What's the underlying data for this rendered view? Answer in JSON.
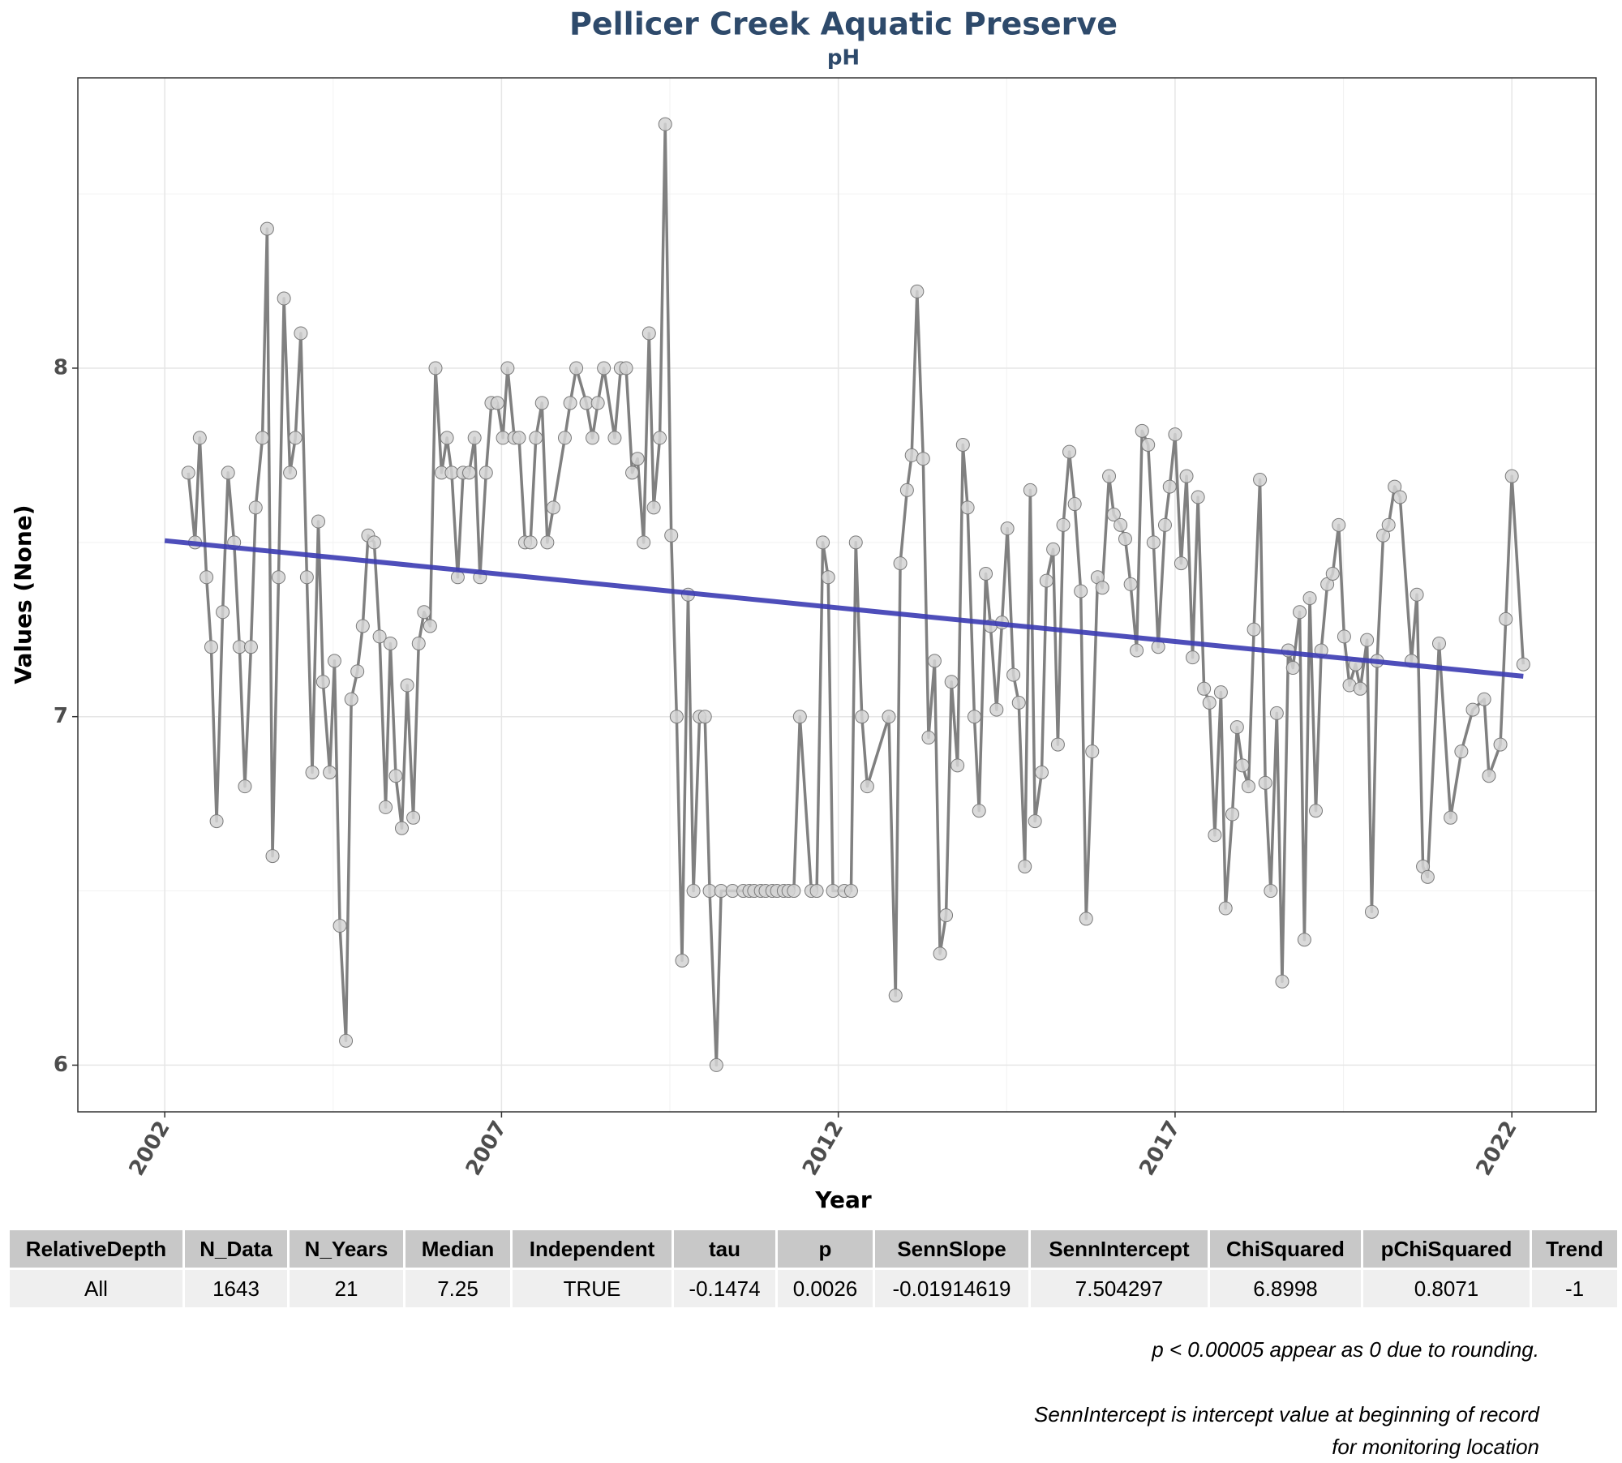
{
  "chart_data": {
    "type": "line",
    "title": "Pellicer Creek Aquatic Preserve",
    "subtitle": "pH",
    "x_label": "Year",
    "y_label": "Values (None)",
    "xlim": [
      2000.71,
      2023.25
    ],
    "ylim": [
      5.866,
      8.833
    ],
    "xticks": [
      2002,
      2007,
      2012,
      2017,
      2022
    ],
    "yticks": [
      6,
      7,
      8
    ],
    "minor_grid_x": [
      2004.5,
      2009.5,
      2014.5,
      2019.5
    ],
    "minor_grid_y": [
      6.5,
      7.5,
      8.5
    ],
    "grid": true,
    "color": "#808080",
    "marker_color": "#d3d3d3",
    "x": [
      2002.35,
      2002.45,
      2002.52,
      2002.62,
      2002.69,
      2002.77,
      2002.86,
      2002.94,
      2003.03,
      2003.11,
      2003.19,
      2003.28,
      2003.35,
      2003.45,
      2003.52,
      2003.6,
      2003.69,
      2003.77,
      2003.86,
      2003.94,
      2004.02,
      2004.11,
      2004.19,
      2004.28,
      2004.35,
      2004.45,
      2004.52,
      2004.6,
      2004.69,
      2004.77,
      2004.86,
      2004.94,
      2005.02,
      2005.11,
      2005.19,
      2005.28,
      2005.35,
      2005.43,
      2005.52,
      2005.6,
      2005.69,
      2005.77,
      2005.85,
      2005.94,
      2006.02,
      2006.11,
      2006.19,
      2006.26,
      2006.35,
      2006.43,
      2006.52,
      2006.6,
      2006.68,
      2006.77,
      2006.85,
      2006.94,
      2007.02,
      2007.09,
      2007.19,
      2007.26,
      2007.35,
      2007.43,
      2007.51,
      2007.6,
      2007.68,
      2007.77,
      2007.94,
      2008.02,
      2008.11,
      2008.26,
      2008.35,
      2008.43,
      2008.52,
      2008.68,
      2008.77,
      2008.85,
      2008.94,
      2009.02,
      2009.11,
      2009.19,
      2009.26,
      2009.35,
      2009.43,
      2009.52,
      2009.6,
      2009.68,
      2009.77,
      2009.85,
      2009.94,
      2010.02,
      2010.09,
      2010.19,
      2010.26,
      2010.43,
      2010.59,
      2010.68,
      2010.75,
      2010.85,
      2010.92,
      2011.02,
      2011.09,
      2011.19,
      2011.26,
      2011.34,
      2011.43,
      2011.6,
      2011.68,
      2011.77,
      2011.85,
      2011.92,
      2012.09,
      2012.19,
      2012.26,
      2012.35,
      2012.43,
      2012.75,
      2012.85,
      2012.92,
      2013.02,
      2013.09,
      2013.17,
      2013.26,
      2013.34,
      2013.43,
      2013.51,
      2013.6,
      2013.68,
      2013.77,
      2013.85,
      2013.92,
      2014.02,
      2014.09,
      2014.19,
      2014.26,
      2014.35,
      2014.43,
      2014.51,
      2014.6,
      2014.68,
      2014.77,
      2014.85,
      2014.92,
      2015.02,
      2015.09,
      2015.19,
      2015.26,
      2015.34,
      2015.43,
      2015.51,
      2015.6,
      2015.68,
      2015.77,
      2015.85,
      2015.92,
      2016.02,
      2016.09,
      2016.19,
      2016.26,
      2016.34,
      2016.43,
      2016.51,
      2016.6,
      2016.68,
      2016.75,
      2016.85,
      2016.92,
      2017.0,
      2017.09,
      2017.17,
      2017.26,
      2017.34,
      2017.43,
      2017.51,
      2017.59,
      2017.68,
      2017.75,
      2017.85,
      2017.92,
      2018.0,
      2018.09,
      2018.17,
      2018.26,
      2018.34,
      2018.42,
      2018.51,
      2018.59,
      2018.68,
      2018.75,
      2018.85,
      2018.92,
      2019.0,
      2019.09,
      2019.17,
      2019.26,
      2019.34,
      2019.43,
      2019.51,
      2019.59,
      2019.68,
      2019.75,
      2019.85,
      2019.92,
      2020.0,
      2020.09,
      2020.17,
      2020.26,
      2020.34,
      2020.51,
      2020.59,
      2020.68,
      2020.75,
      2020.92,
      2021.09,
      2021.25,
      2021.42,
      2021.59,
      2021.66,
      2021.83,
      2021.91,
      2022.0,
      2022.17
    ],
    "values": [
      7.7,
      7.5,
      7.8,
      7.4,
      7.2,
      6.7,
      7.3,
      7.7,
      7.5,
      7.2,
      6.8,
      7.2,
      7.6,
      7.8,
      8.4,
      6.6,
      7.4,
      8.2,
      7.7,
      7.8,
      8.1,
      7.4,
      6.84,
      7.56,
      7.1,
      6.84,
      7.16,
      6.4,
      6.07,
      7.05,
      7.13,
      7.26,
      7.52,
      7.5,
      7.23,
      6.74,
      7.21,
      6.83,
      6.68,
      7.09,
      6.71,
      7.21,
      7.3,
      7.26,
      8.0,
      7.7,
      7.8,
      7.7,
      7.4,
      7.7,
      7.7,
      7.8,
      7.4,
      7.7,
      7.9,
      7.9,
      7.8,
      8.0,
      7.8,
      7.8,
      7.5,
      7.5,
      7.8,
      7.9,
      7.5,
      7.6,
      7.8,
      7.9,
      8.0,
      7.9,
      7.8,
      7.9,
      8.0,
      7.8,
      8.0,
      8.0,
      7.7,
      7.74,
      7.5,
      8.1,
      7.6,
      7.8,
      8.7,
      7.52,
      7.0,
      6.3,
      7.35,
      6.5,
      7.0,
      7.0,
      6.5,
      6.0,
      6.5,
      6.5,
      6.5,
      6.5,
      6.5,
      6.5,
      6.5,
      6.5,
      6.5,
      6.5,
      6.5,
      6.5,
      7.0,
      6.5,
      6.5,
      7.5,
      7.4,
      6.5,
      6.5,
      6.5,
      7.5,
      7.0,
      6.8,
      7.0,
      6.2,
      7.44,
      7.65,
      7.75,
      8.22,
      7.74,
      6.94,
      7.16,
      6.32,
      6.43,
      7.1,
      6.86,
      7.78,
      7.6,
      7.0,
      6.73,
      7.41,
      7.26,
      7.02,
      7.27,
      7.54,
      7.12,
      7.04,
      6.57,
      7.65,
      6.7,
      6.84,
      7.39,
      7.48,
      6.92,
      7.55,
      7.76,
      7.61,
      7.36,
      6.42,
      6.9,
      7.4,
      7.37,
      7.69,
      7.58,
      7.55,
      7.51,
      7.38,
      7.19,
      7.82,
      7.78,
      7.5,
      7.2,
      7.55,
      7.66,
      7.81,
      7.44,
      7.69,
      7.17,
      7.63,
      7.08,
      7.04,
      6.66,
      7.07,
      6.45,
      6.72,
      6.97,
      6.86,
      6.8,
      7.25,
      7.68,
      6.81,
      6.5,
      7.01,
      6.24,
      7.19,
      7.14,
      7.3,
      6.36,
      7.34,
      6.73,
      7.19,
      7.38,
      7.41,
      7.55,
      7.23,
      7.09,
      7.15,
      7.08,
      7.22,
      6.44,
      7.16,
      7.52,
      7.55,
      7.66,
      7.63,
      7.16,
      7.35,
      6.57,
      6.54,
      7.21,
      6.71,
      6.9,
      7.02,
      7.05,
      6.83,
      6.92,
      7.28,
      7.69,
      7.15
    ],
    "trend": {
      "color": "#3b3bb3",
      "x": [
        2002,
        2022.17
      ],
      "values": [
        7.505,
        7.116
      ]
    }
  },
  "table": {
    "columns": [
      "RelativeDepth",
      "N_Data",
      "N_Years",
      "Median",
      "Independent",
      "tau",
      "p",
      "SennSlope",
      "SennIntercept",
      "ChiSquared",
      "pChiSquared",
      "Trend"
    ],
    "rows": [
      [
        "All",
        "1643",
        "21",
        "7.25",
        "TRUE",
        "-0.1474",
        "0.0026",
        "-0.01914619",
        "7.504297",
        "6.8998",
        "0.8071",
        "-1"
      ]
    ]
  },
  "notes": [
    "p < 0.00005 appear as 0 due to rounding.",
    "SennIntercept is intercept value at beginning of record for monitoring location"
  ]
}
